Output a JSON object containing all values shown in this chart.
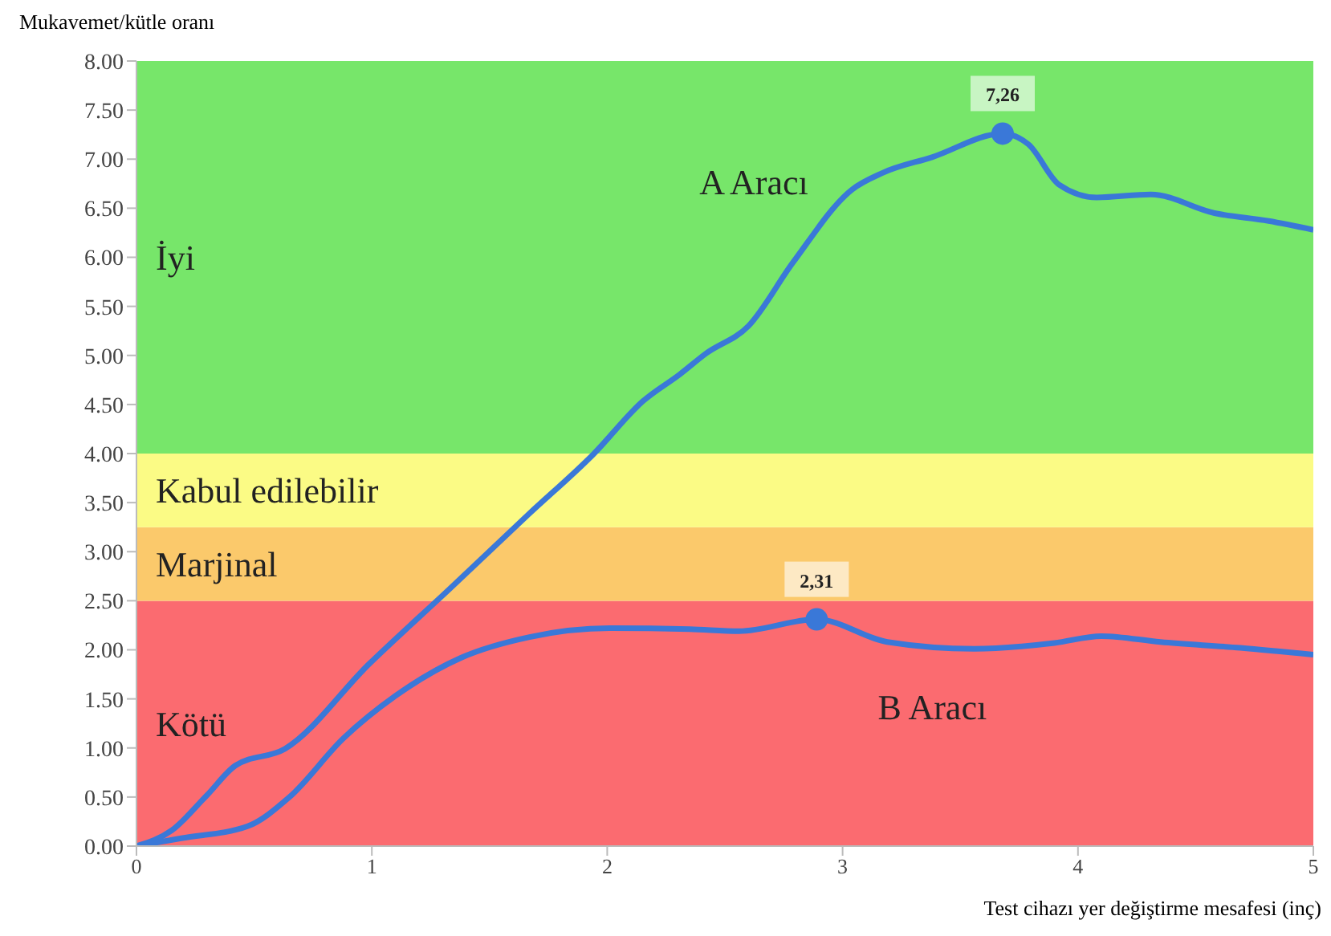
{
  "chart_data": {
    "type": "line",
    "xlabel": "Test cihazı yer değiştirme mesafesi (inç)",
    "ylabel": "Mukavemet/kütle oranı",
    "xlim": [
      0,
      5
    ],
    "xticks": [
      0,
      1,
      2,
      3,
      4,
      5
    ],
    "ylim": [
      0,
      8
    ],
    "yticks": [
      {
        "value": 0,
        "label": "0.00"
      },
      {
        "value": 0.5,
        "label": "0.50"
      },
      {
        "value": 1,
        "label": "1.00"
      },
      {
        "value": 1.5,
        "label": "1.50"
      },
      {
        "value": 2,
        "label": "2.00"
      },
      {
        "value": 2.5,
        "label": "2.50"
      },
      {
        "value": 3,
        "label": "3.00"
      },
      {
        "value": 3.5,
        "label": "3.50"
      },
      {
        "value": 4,
        "label": "4.00"
      },
      {
        "value": 4.5,
        "label": "4.50"
      },
      {
        "value": 5,
        "label": "5.00"
      },
      {
        "value": 5.5,
        "label": "5.50"
      },
      {
        "value": 6,
        "label": "6.00"
      },
      {
        "value": 6.5,
        "label": "6.50"
      },
      {
        "value": 7,
        "label": "7.00"
      },
      {
        "value": 7.5,
        "label": "7.50"
      },
      {
        "value": 8,
        "label": "8.00"
      }
    ],
    "marker": "none",
    "line_style": "solid",
    "legend": false,
    "bands": [
      {
        "axis": "y",
        "from": 0,
        "to": 2.5,
        "label": "Kötü",
        "color": "#fb6b70"
      },
      {
        "axis": "y",
        "from": 2.5,
        "to": 3.25,
        "label": "Marjinal",
        "color": "#fbc96b"
      },
      {
        "axis": "y",
        "from": 3.25,
        "to": 4,
        "label": "Kabul edilebilir",
        "color": "#fbfb85"
      },
      {
        "axis": "y",
        "from": 4,
        "to": 8,
        "label": "İyi",
        "color": "#77e66a"
      }
    ],
    "series": [
      {
        "name": "A Aracı",
        "color": "#3a78d8",
        "x": [
          0,
          0.15,
          0.3,
          0.42,
          0.63,
          0.99,
          1.33,
          1.67,
          1.94,
          2.15,
          2.31,
          2.42,
          2.6,
          2.79,
          3.04,
          3.17,
          3.38,
          3.68,
          3.79,
          3.92,
          4.08,
          4.31,
          4.58,
          4.81,
          5
        ],
        "values": [
          0,
          0.16,
          0.52,
          0.82,
          0.99,
          1.86,
          2.62,
          3.39,
          3.99,
          4.53,
          4.81,
          5.02,
          5.3,
          5.95,
          6.69,
          6.86,
          7.02,
          7.26,
          7.15,
          6.74,
          6.61,
          6.64,
          6.45,
          6.37,
          6.28
        ],
        "value_labels": [
          null,
          null,
          null,
          null,
          null,
          null,
          null,
          null,
          null,
          null,
          null,
          null,
          null,
          null,
          null,
          null,
          null,
          "7,26",
          null,
          null,
          null,
          null,
          null,
          null,
          null
        ]
      },
      {
        "name": "B Aracı",
        "color": "#3a78d8",
        "x": [
          0,
          0.19,
          0.47,
          0.65,
          0.88,
          1.1,
          1.38,
          1.67,
          2.01,
          2.35,
          2.56,
          2.89,
          3.19,
          3.56,
          3.9,
          4.1,
          4.35,
          4.69,
          5
        ],
        "values": [
          0,
          0.08,
          0.2,
          0.5,
          1.1,
          1.53,
          1.92,
          2.13,
          2.22,
          2.21,
          2.19,
          2.31,
          2.08,
          2.01,
          2.07,
          2.14,
          2.08,
          2.02,
          1.95
        ],
        "value_labels": [
          null,
          null,
          null,
          null,
          null,
          null,
          null,
          null,
          null,
          null,
          null,
          "2,31",
          null,
          null,
          null,
          null,
          null,
          null,
          null
        ]
      }
    ]
  }
}
